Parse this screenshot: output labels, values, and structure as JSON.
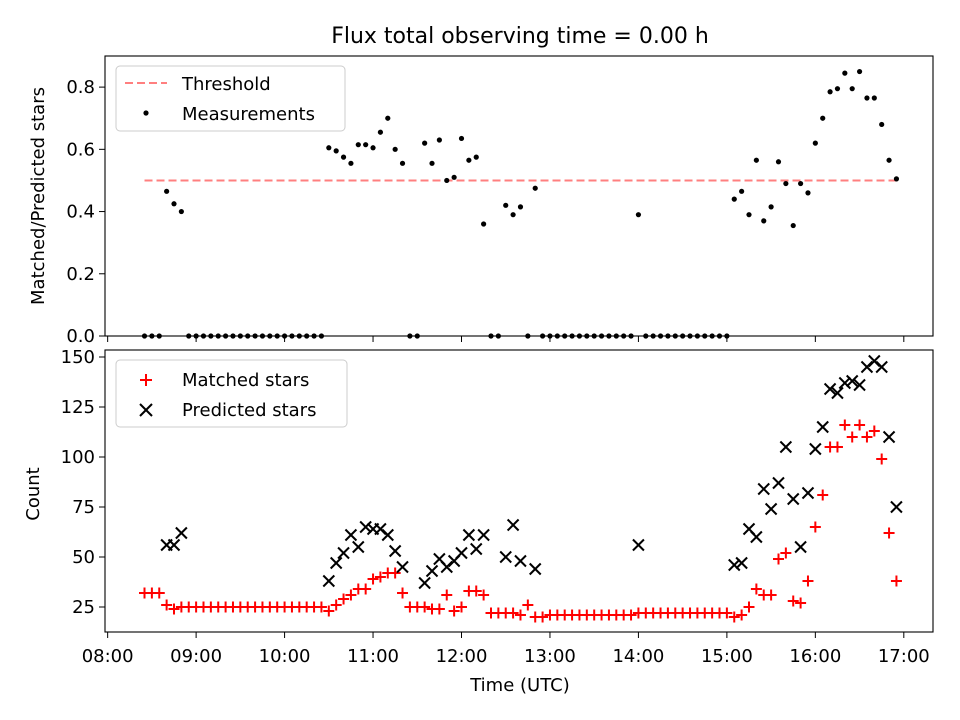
{
  "title": "Flux total observing time = 0.00 h",
  "chart_data": [
    {
      "type": "scatter",
      "ylabel": "Matched/Predicted stars",
      "ylim": [
        0,
        0.9
      ],
      "yticks": [
        0.0,
        0.2,
        0.4,
        0.6,
        0.8
      ],
      "xlim_hours": [
        7.97,
        17.33
      ],
      "legend": {
        "position": "top-left",
        "entries": [
          "Threshold",
          "Measurements"
        ]
      },
      "threshold": {
        "name": "Threshold",
        "y": 0.5,
        "x_start": "08:25",
        "x_end": "16:55",
        "color": "#ff7f7f"
      },
      "measurements": {
        "name": "Measurements",
        "color": "#000000",
        "points": [
          [
            "08:25",
            0
          ],
          [
            "08:30",
            0
          ],
          [
            "08:35",
            0
          ],
          [
            "08:40",
            0.465
          ],
          [
            "08:45",
            0.425
          ],
          [
            "08:50",
            0.4
          ],
          [
            "08:55",
            0
          ],
          [
            "09:00",
            0
          ],
          [
            "09:05",
            0
          ],
          [
            "09:10",
            0
          ],
          [
            "09:15",
            0
          ],
          [
            "09:20",
            0
          ],
          [
            "09:25",
            0
          ],
          [
            "09:30",
            0
          ],
          [
            "09:35",
            0
          ],
          [
            "09:40",
            0
          ],
          [
            "09:45",
            0
          ],
          [
            "09:50",
            0
          ],
          [
            "09:55",
            0
          ],
          [
            "10:00",
            0
          ],
          [
            "10:05",
            0
          ],
          [
            "10:10",
            0
          ],
          [
            "10:15",
            0
          ],
          [
            "10:20",
            0
          ],
          [
            "10:25",
            0
          ],
          [
            "10:30",
            0.605
          ],
          [
            "10:35",
            0.595
          ],
          [
            "10:40",
            0.575
          ],
          [
            "10:45",
            0.555
          ],
          [
            "10:50",
            0.615
          ],
          [
            "10:55",
            0.615
          ],
          [
            "11:00",
            0.605
          ],
          [
            "11:05",
            0.655
          ],
          [
            "11:10",
            0.7
          ],
          [
            "11:15",
            0.6
          ],
          [
            "11:20",
            0.555
          ],
          [
            "11:25",
            0
          ],
          [
            "11:30",
            0
          ],
          [
            "11:35",
            0.62
          ],
          [
            "11:40",
            0.555
          ],
          [
            "11:45",
            0.63
          ],
          [
            "11:50",
            0.5
          ],
          [
            "11:55",
            0.51
          ],
          [
            "12:00",
            0.635
          ],
          [
            "12:05",
            0.565
          ],
          [
            "12:10",
            0.575
          ],
          [
            "12:15",
            0.36
          ],
          [
            "12:20",
            0
          ],
          [
            "12:25",
            0
          ],
          [
            "12:30",
            0.42
          ],
          [
            "12:35",
            0.39
          ],
          [
            "12:40",
            0.415
          ],
          [
            "12:45",
            0
          ],
          [
            "12:50",
            0.475
          ],
          [
            "12:55",
            0
          ],
          [
            "13:00",
            0
          ],
          [
            "13:05",
            0
          ],
          [
            "13:10",
            0
          ],
          [
            "13:15",
            0
          ],
          [
            "13:20",
            0
          ],
          [
            "13:25",
            0
          ],
          [
            "13:30",
            0
          ],
          [
            "13:35",
            0
          ],
          [
            "13:40",
            0
          ],
          [
            "13:45",
            0
          ],
          [
            "13:50",
            0
          ],
          [
            "13:55",
            0
          ],
          [
            "14:00",
            0.39
          ],
          [
            "14:05",
            0
          ],
          [
            "14:10",
            0
          ],
          [
            "14:15",
            0
          ],
          [
            "14:20",
            0
          ],
          [
            "14:25",
            0
          ],
          [
            "14:30",
            0
          ],
          [
            "14:35",
            0
          ],
          [
            "14:40",
            0
          ],
          [
            "14:45",
            0
          ],
          [
            "14:50",
            0
          ],
          [
            "14:55",
            0
          ],
          [
            "15:00",
            0
          ],
          [
            "15:05",
            0.44
          ],
          [
            "15:10",
            0.465
          ],
          [
            "15:15",
            0.39
          ],
          [
            "15:20",
            0.565
          ],
          [
            "15:25",
            0.37
          ],
          [
            "15:30",
            0.415
          ],
          [
            "15:35",
            0.56
          ],
          [
            "15:40",
            0.49
          ],
          [
            "15:45",
            0.355
          ],
          [
            "15:50",
            0.49
          ],
          [
            "15:55",
            0.46
          ],
          [
            "16:00",
            0.62
          ],
          [
            "16:05",
            0.7
          ],
          [
            "16:10",
            0.785
          ],
          [
            "16:15",
            0.795
          ],
          [
            "16:20",
            0.845
          ],
          [
            "16:25",
            0.795
          ],
          [
            "16:30",
            0.85
          ],
          [
            "16:35",
            0.765
          ],
          [
            "16:40",
            0.765
          ],
          [
            "16:45",
            0.68
          ],
          [
            "16:50",
            0.565
          ],
          [
            "16:55",
            0.505
          ]
        ]
      }
    },
    {
      "type": "scatter",
      "xlabel": "Time (UTC)",
      "ylabel": "Count",
      "ylim": [
        12.5,
        153.5
      ],
      "yticks": [
        25,
        50,
        75,
        100,
        125,
        150
      ],
      "xlim_hours": [
        7.97,
        17.33
      ],
      "xticks": [
        "08:00",
        "09:00",
        "10:00",
        "11:00",
        "12:00",
        "13:00",
        "14:00",
        "15:00",
        "16:00",
        "17:00"
      ],
      "legend": {
        "position": "top-left",
        "entries": [
          "Matched stars",
          "Predicted stars"
        ]
      },
      "series": [
        {
          "name": "Matched stars",
          "marker": "+",
          "color": "#ff0000",
          "points": [
            [
              "08:25",
              32
            ],
            [
              "08:30",
              32
            ],
            [
              "08:35",
              32
            ],
            [
              "08:40",
              26
            ],
            [
              "08:45",
              24
            ],
            [
              "08:50",
              25
            ],
            [
              "08:55",
              25
            ],
            [
              "09:00",
              25
            ],
            [
              "09:05",
              25
            ],
            [
              "09:10",
              25
            ],
            [
              "09:15",
              25
            ],
            [
              "09:20",
              25
            ],
            [
              "09:25",
              25
            ],
            [
              "09:30",
              25
            ],
            [
              "09:35",
              25
            ],
            [
              "09:40",
              25
            ],
            [
              "09:45",
              25
            ],
            [
              "09:50",
              25
            ],
            [
              "09:55",
              25
            ],
            [
              "10:00",
              25
            ],
            [
              "10:05",
              25
            ],
            [
              "10:10",
              25
            ],
            [
              "10:15",
              25
            ],
            [
              "10:20",
              25
            ],
            [
              "10:25",
              25
            ],
            [
              "10:30",
              23
            ],
            [
              "10:35",
              26
            ],
            [
              "10:40",
              29
            ],
            [
              "10:45",
              31
            ],
            [
              "10:50",
              34
            ],
            [
              "10:55",
              34
            ],
            [
              "11:00",
              39
            ],
            [
              "11:05",
              40
            ],
            [
              "11:10",
              42
            ],
            [
              "11:15",
              42
            ],
            [
              "11:20",
              32
            ],
            [
              "11:25",
              25
            ],
            [
              "11:30",
              25
            ],
            [
              "11:35",
              25
            ],
            [
              "11:40",
              24
            ],
            [
              "11:45",
              24
            ],
            [
              "11:50",
              31
            ],
            [
              "11:55",
              23
            ],
            [
              "12:00",
              25
            ],
            [
              "12:05",
              33
            ],
            [
              "12:10",
              33
            ],
            [
              "12:15",
              31
            ],
            [
              "12:20",
              22
            ],
            [
              "12:25",
              22
            ],
            [
              "12:30",
              22
            ],
            [
              "12:35",
              22
            ],
            [
              "12:40",
              21
            ],
            [
              "12:45",
              26
            ],
            [
              "12:50",
              20
            ],
            [
              "12:55",
              20
            ],
            [
              "13:00",
              21
            ],
            [
              "13:05",
              21
            ],
            [
              "13:10",
              21
            ],
            [
              "13:15",
              21
            ],
            [
              "13:20",
              21
            ],
            [
              "13:25",
              21
            ],
            [
              "13:30",
              21
            ],
            [
              "13:35",
              21
            ],
            [
              "13:40",
              21
            ],
            [
              "13:45",
              21
            ],
            [
              "13:50",
              21
            ],
            [
              "13:55",
              21
            ],
            [
              "14:00",
              22
            ],
            [
              "14:05",
              22
            ],
            [
              "14:10",
              22
            ],
            [
              "14:15",
              22
            ],
            [
              "14:20",
              22
            ],
            [
              "14:25",
              22
            ],
            [
              "14:30",
              22
            ],
            [
              "14:35",
              22
            ],
            [
              "14:40",
              22
            ],
            [
              "14:45",
              22
            ],
            [
              "14:50",
              22
            ],
            [
              "14:55",
              22
            ],
            [
              "15:00",
              22
            ],
            [
              "15:05",
              20
            ],
            [
              "15:10",
              21
            ],
            [
              "15:15",
              25
            ],
            [
              "15:20",
              34
            ],
            [
              "15:25",
              31
            ],
            [
              "15:30",
              31
            ],
            [
              "15:35",
              49
            ],
            [
              "15:40",
              52
            ],
            [
              "15:45",
              28
            ],
            [
              "15:50",
              27
            ],
            [
              "15:55",
              38
            ],
            [
              "16:00",
              65
            ],
            [
              "16:05",
              81
            ],
            [
              "16:10",
              105
            ],
            [
              "16:15",
              105
            ],
            [
              "16:20",
              116
            ],
            [
              "16:25",
              110
            ],
            [
              "16:30",
              116
            ],
            [
              "16:35",
              110
            ],
            [
              "16:40",
              113
            ],
            [
              "16:45",
              99
            ],
            [
              "16:50",
              62
            ],
            [
              "16:55",
              38
            ]
          ]
        },
        {
          "name": "Predicted stars",
          "marker": "x",
          "color": "#000000",
          "points": [
            [
              "08:40",
              56
            ],
            [
              "08:45",
              56
            ],
            [
              "08:50",
              62
            ],
            [
              "10:30",
              38
            ],
            [
              "10:35",
              47
            ],
            [
              "10:40",
              52
            ],
            [
              "10:45",
              61
            ],
            [
              "10:50",
              55
            ],
            [
              "10:55",
              65
            ],
            [
              "11:00",
              64
            ],
            [
              "11:05",
              64
            ],
            [
              "11:10",
              61
            ],
            [
              "11:15",
              53
            ],
            [
              "11:20",
              45
            ],
            [
              "11:35",
              37
            ],
            [
              "11:40",
              43
            ],
            [
              "11:45",
              49
            ],
            [
              "11:50",
              45
            ],
            [
              "11:55",
              48
            ],
            [
              "12:00",
              52
            ],
            [
              "12:05",
              61
            ],
            [
              "12:10",
              54
            ],
            [
              "12:15",
              61
            ],
            [
              "12:30",
              50
            ],
            [
              "12:35",
              66
            ],
            [
              "12:40",
              48
            ],
            [
              "12:50",
              44
            ],
            [
              "14:00",
              56
            ],
            [
              "15:05",
              46
            ],
            [
              "15:10",
              47
            ],
            [
              "15:15",
              64
            ],
            [
              "15:20",
              60
            ],
            [
              "15:25",
              84
            ],
            [
              "15:30",
              74
            ],
            [
              "15:35",
              87
            ],
            [
              "15:40",
              105
            ],
            [
              "15:45",
              79
            ],
            [
              "15:50",
              55
            ],
            [
              "15:55",
              82
            ],
            [
              "16:00",
              104
            ],
            [
              "16:05",
              115
            ],
            [
              "16:10",
              134
            ],
            [
              "16:15",
              132
            ],
            [
              "16:20",
              137
            ],
            [
              "16:25",
              138
            ],
            [
              "16:30",
              136
            ],
            [
              "16:35",
              145
            ],
            [
              "16:40",
              148
            ],
            [
              "16:45",
              145
            ],
            [
              "16:50",
              110
            ],
            [
              "16:55",
              75
            ]
          ]
        }
      ]
    }
  ]
}
